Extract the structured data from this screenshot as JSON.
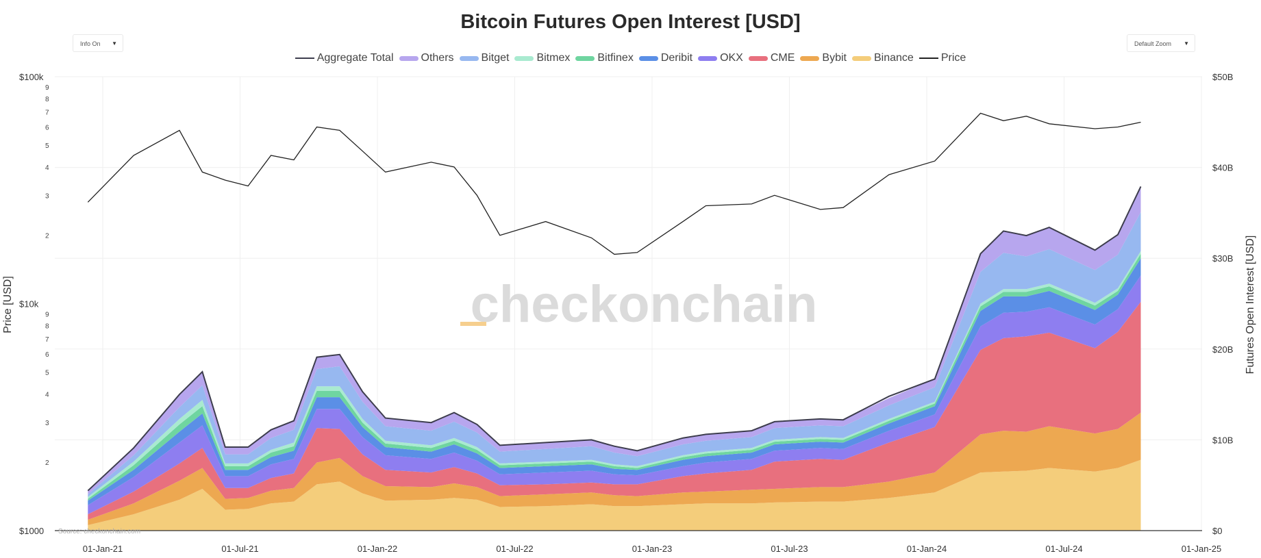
{
  "chart_title": "Bitcoin Futures Open Interest [USD]",
  "controls": {
    "info_toggle": "Info On",
    "zoom_select": "Default Zoom"
  },
  "watermark": "checkonchain",
  "source_note": "Source: checkonchain.com",
  "chart_data": {
    "type": "area",
    "title": "Bitcoin Futures Open Interest [USD]",
    "ylabel_left": "Price [USD]",
    "ylabel_right": "Futures Open Interest [USD]",
    "left_axis": {
      "scale": "log",
      "range": [
        1000,
        100000
      ],
      "major_ticks": [
        "$1000",
        "$10k",
        "$100k"
      ],
      "minor_ticks": [
        "2",
        "3",
        "4",
        "5",
        "6",
        "7",
        "8",
        "9"
      ]
    },
    "right_axis": {
      "scale": "linear",
      "range": [
        0,
        50
      ],
      "unit": "B USD",
      "ticks": [
        "$0",
        "$10B",
        "$20B",
        "$30B",
        "$40B",
        "$50B"
      ]
    },
    "x_ticks": [
      "01-Jan-21",
      "01-Jul-21",
      "01-Jan-22",
      "01-Jul-22",
      "01-Jan-23",
      "01-Jul-23",
      "01-Jan-24",
      "01-Jul-24",
      "01-Jan-25"
    ],
    "x": [
      "2020-12",
      "2021-02",
      "2021-04",
      "2021-05",
      "2021-06",
      "2021-07",
      "2021-08",
      "2021-09",
      "2021-10",
      "2021-11",
      "2021-12",
      "2022-01",
      "2022-03",
      "2022-04",
      "2022-05",
      "2022-06",
      "2022-08",
      "2022-10",
      "2022-11",
      "2022-12",
      "2023-02",
      "2023-03",
      "2023-05",
      "2023-06",
      "2023-08",
      "2023-09",
      "2023-11",
      "2024-01",
      "2024-03",
      "2024-04",
      "2024-05",
      "2024-06",
      "2024-08",
      "2024-09",
      "2024-10"
    ],
    "stack_order": [
      "Binance",
      "Bybit",
      "CME",
      "OKX",
      "Deribit",
      "Bitfinex",
      "Bitmex",
      "Bitget",
      "Others"
    ],
    "series": [
      {
        "name": "Binance",
        "color": "#f4cd7b",
        "values": [
          0.6,
          1.8,
          3.4,
          4.6,
          2.3,
          2.4,
          3.0,
          3.2,
          5.1,
          5.4,
          4.1,
          3.3,
          3.4,
          3.6,
          3.4,
          2.6,
          2.7,
          2.9,
          2.7,
          2.7,
          2.9,
          3.0,
          3.0,
          3.1,
          3.2,
          3.2,
          3.6,
          4.2,
          6.4,
          6.5,
          6.6,
          6.9,
          6.5,
          6.9,
          7.8
        ]
      },
      {
        "name": "Bybit",
        "color": "#eda851",
        "values": [
          0.6,
          1.2,
          2.1,
          2.3,
          1.2,
          1.2,
          1.4,
          1.5,
          2.4,
          2.6,
          1.9,
          1.6,
          1.4,
          1.6,
          1.4,
          1.2,
          1.3,
          1.3,
          1.2,
          1.1,
          1.3,
          1.3,
          1.5,
          1.5,
          1.6,
          1.6,
          1.8,
          2.2,
          4.2,
          4.5,
          4.3,
          4.6,
          4.2,
          4.3,
          5.2
        ]
      },
      {
        "name": "CME",
        "color": "#e8707e",
        "values": [
          0.6,
          1.3,
          1.9,
          2.2,
          1.2,
          1.1,
          1.4,
          1.6,
          3.8,
          3.2,
          2.4,
          1.8,
          1.6,
          1.8,
          1.5,
          1.2,
          1.1,
          1.1,
          1.2,
          1.3,
          1.8,
          2.0,
          2.2,
          3.0,
          3.1,
          3.0,
          4.3,
          5.0,
          9.3,
          10.2,
          10.5,
          10.3,
          9.4,
          10.7,
          12.2
        ]
      },
      {
        "name": "OKX",
        "color": "#8e7ef0",
        "values": [
          1.0,
          1.6,
          2.3,
          2.5,
          1.3,
          1.3,
          1.5,
          1.6,
          2.1,
          2.2,
          1.9,
          1.6,
          1.5,
          1.6,
          1.4,
          1.2,
          1.3,
          1.3,
          1.1,
          1.0,
          1.1,
          1.2,
          1.2,
          1.2,
          1.2,
          1.2,
          1.3,
          1.4,
          2.6,
          2.8,
          2.7,
          2.8,
          2.6,
          2.5,
          2.9
        ]
      },
      {
        "name": "Deribit",
        "color": "#5b8fe6",
        "values": [
          0.5,
          0.8,
          1.2,
          1.3,
          0.7,
          0.7,
          0.8,
          0.9,
          1.3,
          1.3,
          1.1,
          0.9,
          0.8,
          0.9,
          0.8,
          0.7,
          0.7,
          0.7,
          0.6,
          0.6,
          0.7,
          0.7,
          0.7,
          0.7,
          0.7,
          0.7,
          0.8,
          0.9,
          1.7,
          1.8,
          1.7,
          1.8,
          1.6,
          1.6,
          1.9
        ]
      },
      {
        "name": "Bitfinex",
        "color": "#6fd5a0",
        "values": [
          0.2,
          0.5,
          0.8,
          0.8,
          0.4,
          0.4,
          0.5,
          0.5,
          0.7,
          0.7,
          0.5,
          0.4,
          0.4,
          0.4,
          0.4,
          0.3,
          0.3,
          0.3,
          0.3,
          0.2,
          0.3,
          0.3,
          0.3,
          0.3,
          0.3,
          0.3,
          0.3,
          0.3,
          0.5,
          0.5,
          0.5,
          0.5,
          0.5,
          0.4,
          0.5
        ]
      },
      {
        "name": "Bitmex",
        "color": "#a9ead0",
        "values": [
          0.2,
          0.4,
          0.6,
          0.7,
          0.3,
          0.3,
          0.3,
          0.4,
          0.5,
          0.5,
          0.4,
          0.3,
          0.3,
          0.3,
          0.3,
          0.2,
          0.2,
          0.2,
          0.2,
          0.2,
          0.2,
          0.2,
          0.2,
          0.2,
          0.2,
          0.2,
          0.2,
          0.2,
          0.3,
          0.3,
          0.3,
          0.3,
          0.3,
          0.3,
          0.3
        ]
      },
      {
        "name": "Bitget",
        "color": "#97b8f0",
        "values": [
          0.3,
          0.7,
          1.3,
          1.6,
          1.0,
          1.0,
          1.3,
          1.4,
          1.9,
          2.2,
          1.9,
          1.6,
          1.6,
          1.8,
          1.6,
          1.3,
          1.4,
          1.5,
          1.3,
          1.1,
          1.2,
          1.2,
          1.2,
          1.3,
          1.3,
          1.3,
          1.5,
          1.6,
          3.5,
          4.0,
          3.6,
          3.8,
          3.6,
          3.7,
          4.3
        ]
      },
      {
        "name": "Others",
        "color": "#b7a6ee",
        "values": [
          0.4,
          0.8,
          1.4,
          1.5,
          0.8,
          0.8,
          0.9,
          1.0,
          1.3,
          1.3,
          1.1,
          0.9,
          0.9,
          1.0,
          0.9,
          0.7,
          0.7,
          0.7,
          0.7,
          0.6,
          0.7,
          0.7,
          0.7,
          0.7,
          0.7,
          0.7,
          0.8,
          0.9,
          2.0,
          2.4,
          2.3,
          2.4,
          2.2,
          2.2,
          2.8
        ]
      }
    ],
    "aggregate_total": {
      "name": "Aggregate Total",
      "color": "#3d3d4d",
      "values": [
        4.4,
        9.1,
        15.0,
        17.5,
        9.2,
        9.2,
        11.1,
        12.1,
        19.1,
        19.4,
        15.3,
        12.4,
        11.9,
        13.0,
        11.7,
        9.4,
        9.7,
        10.0,
        9.3,
        8.8,
        10.2,
        10.6,
        11.0,
        12.0,
        12.3,
        12.2,
        14.8,
        16.7,
        30.5,
        33.0,
        32.5,
        33.4,
        30.9,
        32.6,
        37.9
      ]
    },
    "price": {
      "name": "Price",
      "color": "#222222",
      "values": [
        28000,
        45000,
        58000,
        38000,
        35000,
        33000,
        45000,
        43000,
        60000,
        58000,
        47000,
        38000,
        42000,
        40000,
        30000,
        20000,
        23000,
        19500,
        16500,
        16800,
        23000,
        27000,
        27500,
        30000,
        26000,
        26500,
        37000,
        42500,
        69000,
        64000,
        67000,
        62000,
        59000,
        60000,
        63000
      ]
    },
    "legend": [
      "Aggregate Total",
      "Others",
      "Bitget",
      "Bitmex",
      "Bitfinex",
      "Deribit",
      "OKX",
      "CME",
      "Bybit",
      "Binance",
      "Price"
    ],
    "legend_position": "top-center",
    "grid": true
  }
}
